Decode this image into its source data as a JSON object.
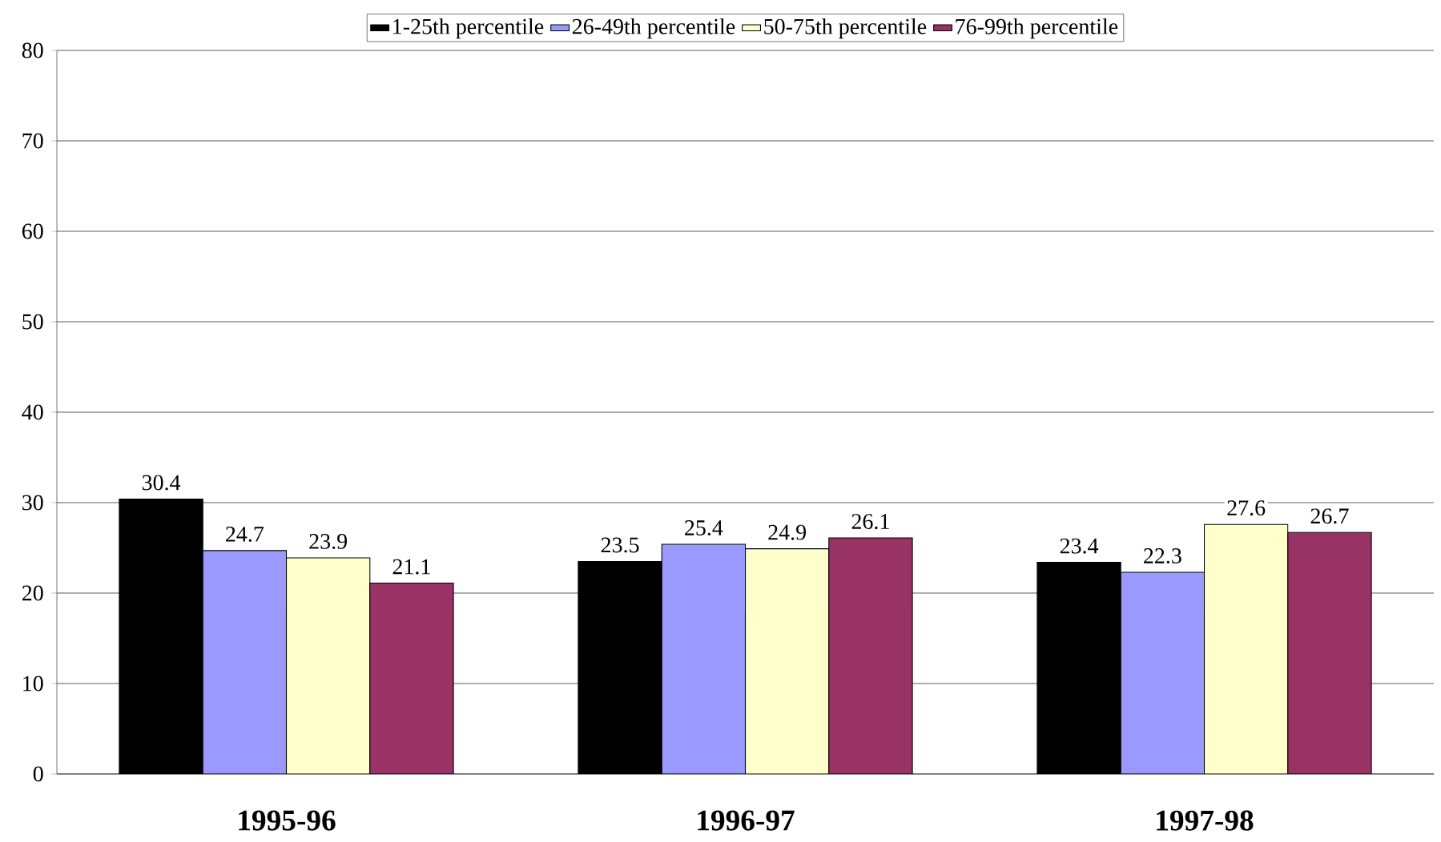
{
  "chart_data": {
    "type": "bar",
    "categories": [
      "1995-96",
      "1996-97",
      "1997-98"
    ],
    "series": [
      {
        "name": "1-25th percentile",
        "color": "#000000",
        "values": [
          30.4,
          23.5,
          23.4
        ]
      },
      {
        "name": "26-49th percentile",
        "color": "#9999ff",
        "values": [
          24.7,
          25.4,
          22.3
        ]
      },
      {
        "name": "50-75th percentile",
        "color": "#ffffcc",
        "values": [
          23.9,
          24.9,
          27.6
        ]
      },
      {
        "name": "76-99th percentile",
        "color": "#993366",
        "values": [
          21.1,
          26.1,
          26.7
        ]
      }
    ],
    "ylim": [
      0,
      80
    ],
    "yticks": [
      0,
      10,
      20,
      30,
      40,
      50,
      60,
      70,
      80
    ],
    "grid": "y",
    "legend": "top",
    "data_labels": true
  }
}
